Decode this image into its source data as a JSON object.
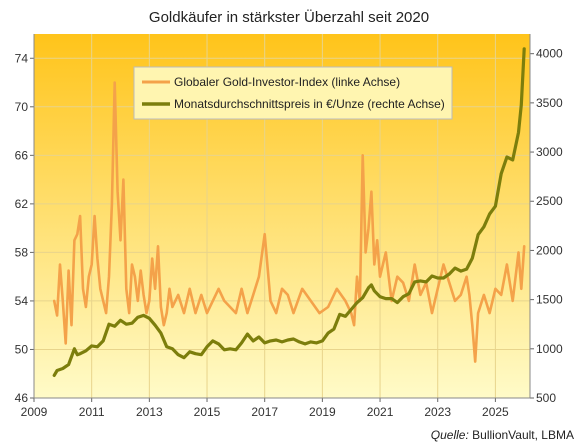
{
  "chart_data": {
    "type": "line",
    "title": "Goldkäufer  in stärkster Überzahl  seit 2020",
    "source_label": "Quelle:",
    "source_value": "BullionVault, LBMA",
    "x_ticks": [
      "2009",
      "2011",
      "2013",
      "2015",
      "2017",
      "2019",
      "2021",
      "2023",
      "2025"
    ],
    "xlim": [
      2009,
      2026.2
    ],
    "y_left": {
      "ticks": [
        "46",
        "50",
        "54",
        "58",
        "62",
        "66",
        "70",
        "74"
      ],
      "range": [
        46,
        76
      ]
    },
    "y_right": {
      "ticks": [
        "500",
        "1000",
        "1500",
        "2000",
        "2500",
        "3000",
        "3500",
        "4000"
      ],
      "range": [
        500,
        4200
      ]
    },
    "grid": true,
    "legend_position": "top-center",
    "colors": {
      "index": "#F4A24A",
      "price": "#7C7E0C",
      "bg_top": "#FFC41A",
      "bg_bottom": "#FFFBC8"
    },
    "series": [
      {
        "name": "Globaler Gold-Investor-Index (linke Achse)",
        "axis": "left",
        "x": [
          2009.7,
          2009.8,
          2009.9,
          2010.0,
          2010.1,
          2010.2,
          2010.3,
          2010.4,
          2010.5,
          2010.6,
          2010.7,
          2010.8,
          2010.9,
          2011.0,
          2011.1,
          2011.2,
          2011.3,
          2011.4,
          2011.5,
          2011.6,
          2011.7,
          2011.8,
          2011.9,
          2012.0,
          2012.1,
          2012.2,
          2012.3,
          2012.4,
          2012.5,
          2012.6,
          2012.7,
          2012.8,
          2012.9,
          2013.0,
          2013.1,
          2013.2,
          2013.3,
          2013.4,
          2013.5,
          2013.6,
          2013.7,
          2013.8,
          2013.9,
          2014.0,
          2014.2,
          2014.4,
          2014.6,
          2014.8,
          2015.0,
          2015.2,
          2015.4,
          2015.6,
          2015.8,
          2016.0,
          2016.2,
          2016.4,
          2016.6,
          2016.8,
          2017.0,
          2017.2,
          2017.4,
          2017.6,
          2017.8,
          2018.0,
          2018.3,
          2018.6,
          2018.9,
          2019.2,
          2019.5,
          2019.8,
          2020.0,
          2020.1,
          2020.2,
          2020.3,
          2020.4,
          2020.5,
          2020.6,
          2020.7,
          2020.8,
          2020.9,
          2021.0,
          2021.2,
          2021.4,
          2021.6,
          2021.8,
          2022.0,
          2022.2,
          2022.4,
          2022.6,
          2022.8,
          2023.0,
          2023.2,
          2023.4,
          2023.6,
          2023.8,
          2024.0,
          2024.1,
          2024.2,
          2024.3,
          2024.4,
          2024.6,
          2024.8,
          2025.0,
          2025.2,
          2025.4,
          2025.6,
          2025.7,
          2025.8,
          2025.9,
          2026.0
        ],
        "values": [
          54,
          52.8,
          57,
          54,
          50.5,
          56.5,
          52,
          59,
          59.5,
          61,
          55,
          53.5,
          56,
          57,
          61,
          57.5,
          55,
          54,
          53,
          56,
          62,
          72,
          63,
          59,
          64,
          55,
          53,
          57,
          56,
          54,
          56.5,
          54.5,
          53,
          54,
          57.5,
          55,
          58.5,
          53.5,
          52,
          53,
          55,
          53.5,
          54,
          54.5,
          53,
          55,
          53,
          54.5,
          53,
          54,
          55,
          54,
          53.5,
          53,
          55,
          53,
          54.5,
          56,
          59.5,
          54,
          53,
          55,
          54.5,
          53,
          55,
          54,
          53,
          53.5,
          55,
          54,
          53,
          52,
          56,
          54,
          66,
          58,
          60,
          63,
          57,
          59,
          56,
          58,
          54,
          56,
          55.5,
          54,
          57,
          54.5,
          55.5,
          53,
          55,
          57,
          55.5,
          54,
          54.5,
          56,
          54.5,
          52,
          49,
          53,
          54.5,
          53,
          55,
          54.5,
          57,
          54,
          56,
          58,
          55,
          58.5
        ]
      },
      {
        "name": "Monatsdurchschnittspreis in €/Unze (rechte Achse)",
        "axis": "right",
        "x": [
          2009.7,
          2009.8,
          2010.0,
          2010.2,
          2010.4,
          2010.5,
          2010.6,
          2010.8,
          2011.0,
          2011.2,
          2011.4,
          2011.6,
          2011.8,
          2012.0,
          2012.2,
          2012.4,
          2012.6,
          2012.8,
          2013.0,
          2013.2,
          2013.4,
          2013.6,
          2013.8,
          2014.0,
          2014.2,
          2014.4,
          2014.6,
          2014.8,
          2015.0,
          2015.2,
          2015.4,
          2015.6,
          2015.8,
          2016.0,
          2016.2,
          2016.4,
          2016.6,
          2016.8,
          2017.0,
          2017.2,
          2017.4,
          2017.6,
          2017.8,
          2018.0,
          2018.2,
          2018.4,
          2018.6,
          2018.8,
          2019.0,
          2019.2,
          2019.4,
          2019.6,
          2019.8,
          2020.0,
          2020.2,
          2020.4,
          2020.6,
          2020.7,
          2020.8,
          2021.0,
          2021.2,
          2021.4,
          2021.6,
          2021.8,
          2022.0,
          2022.2,
          2022.4,
          2022.6,
          2022.8,
          2023.0,
          2023.2,
          2023.4,
          2023.6,
          2023.8,
          2024.0,
          2024.2,
          2024.4,
          2024.6,
          2024.8,
          2025.0,
          2025.2,
          2025.4,
          2025.6,
          2025.8,
          2025.9,
          2026.0
        ],
        "values": [
          730,
          780,
          800,
          840,
          1000,
          940,
          950,
          980,
          1030,
          1020,
          1080,
          1250,
          1230,
          1290,
          1250,
          1260,
          1320,
          1340,
          1310,
          1240,
          1160,
          1020,
          1000,
          940,
          910,
          970,
          950,
          940,
          1020,
          1080,
          1050,
          990,
          1000,
          990,
          1060,
          1150,
          1080,
          1120,
          1060,
          1080,
          1090,
          1070,
          1090,
          1100,
          1070,
          1050,
          1070,
          1060,
          1080,
          1160,
          1200,
          1350,
          1330,
          1400,
          1470,
          1520,
          1620,
          1650,
          1590,
          1530,
          1510,
          1510,
          1470,
          1530,
          1560,
          1680,
          1690,
          1680,
          1740,
          1720,
          1720,
          1760,
          1820,
          1790,
          1810,
          1920,
          2160,
          2240,
          2370,
          2450,
          2780,
          2950,
          2920,
          3200,
          3480,
          4050
        ]
      }
    ]
  }
}
